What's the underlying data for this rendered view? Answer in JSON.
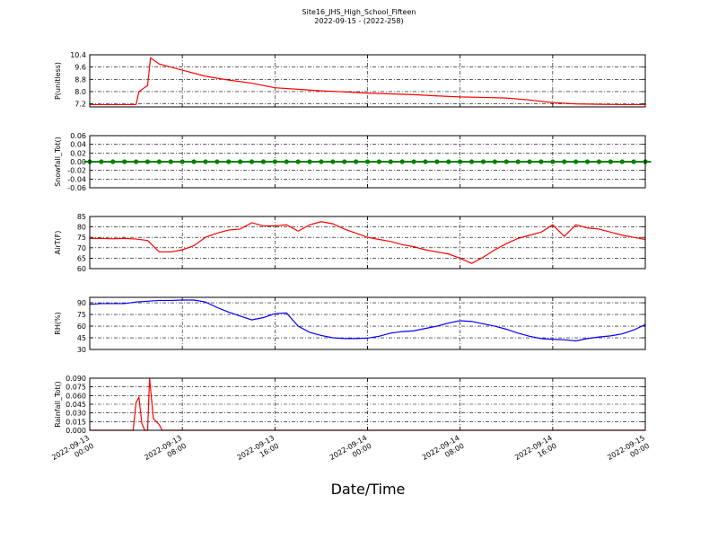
{
  "title": "Site16_JHS_High_School_Fifteen",
  "subtitle": "2022-09-15 - (2022-258)",
  "xlabel": "Date/Time",
  "xlim": [
    "2022-09-13 00:00",
    "2022-09-15 00:00"
  ],
  "xticks": [
    {
      "value": "2022-09-13 00:00",
      "label": [
        "2022-09-13",
        "00:00"
      ]
    },
    {
      "value": "2022-09-13 08:00",
      "label": [
        "2022-09-13",
        "08:00"
      ]
    },
    {
      "value": "2022-09-13 16:00",
      "label": [
        "2022-09-13",
        "16:00"
      ]
    },
    {
      "value": "2022-09-14 00:00",
      "label": [
        "2022-09-14",
        "00:00"
      ]
    },
    {
      "value": "2022-09-14 08:00",
      "label": [
        "2022-09-14",
        "08:00"
      ]
    },
    {
      "value": "2022-09-14 16:00",
      "label": [
        "2022-09-14",
        "16:00"
      ]
    },
    {
      "value": "2022-09-15 00:00",
      "label": [
        "2022-09-15",
        "00:00"
      ]
    }
  ],
  "chart_data": [
    {
      "type": "line",
      "ylabel": "P(unitless)",
      "color": "#ff0000",
      "grid": true,
      "ylim": [
        7.0,
        10.4
      ],
      "yticks": [
        7.2,
        {
          "value": 8,
          "label": "8.0"
        },
        8.8,
        9.6,
        10.4
      ],
      "x": [
        "2022-09-13 00:00",
        "2022-09-13 04:00",
        "2022-09-13 04:15",
        "2022-09-13 05:00",
        "2022-09-13 05:15",
        "2022-09-13 06:00",
        "2022-09-13 07:00",
        "2022-09-13 08:00",
        "2022-09-13 10:00",
        "2022-09-13 12:00",
        "2022-09-13 14:00",
        "2022-09-13 16:00",
        "2022-09-13 18:00",
        "2022-09-13 20:00",
        "2022-09-13 22:00",
        "2022-09-14 00:00",
        "2022-09-14 02:00",
        "2022-09-14 04:00",
        "2022-09-14 06:00",
        "2022-09-14 08:00",
        "2022-09-14 10:00",
        "2022-09-14 12:00",
        "2022-09-14 14:00",
        "2022-09-14 16:00",
        "2022-09-14 18:00",
        "2022-09-14 20:00",
        "2022-09-14 22:00",
        "2022-09-15 00:00"
      ],
      "values": [
        7.15,
        7.15,
        8.0,
        8.4,
        10.2,
        9.8,
        9.6,
        9.4,
        9.0,
        8.75,
        8.55,
        8.25,
        8.15,
        8.05,
        7.98,
        7.9,
        7.85,
        7.8,
        7.72,
        7.65,
        7.62,
        7.58,
        7.45,
        7.28,
        7.2,
        7.17,
        7.15,
        7.15
      ]
    },
    {
      "type": "scatter",
      "ylabel": "Snowfall_Tot()",
      "color": "#008000",
      "grid": true,
      "ylim": [
        -0.06,
        0.06
      ],
      "yticks": [
        -0.06,
        -0.04,
        -0.02,
        {
          "value": 0,
          "label": "0.00"
        },
        0.02,
        0.04,
        0.06
      ],
      "x": [
        "2022-09-13 00:00",
        "2022-09-13 01:00",
        "2022-09-13 02:00",
        "2022-09-13 03:00",
        "2022-09-13 04:00",
        "2022-09-13 05:00",
        "2022-09-13 06:00",
        "2022-09-13 07:00",
        "2022-09-13 08:00",
        "2022-09-13 09:00",
        "2022-09-13 10:00",
        "2022-09-13 11:00",
        "2022-09-13 12:00",
        "2022-09-13 13:00",
        "2022-09-13 14:00",
        "2022-09-13 15:00",
        "2022-09-13 16:00",
        "2022-09-13 17:00",
        "2022-09-13 18:00",
        "2022-09-13 19:00",
        "2022-09-13 20:00",
        "2022-09-13 21:00",
        "2022-09-13 22:00",
        "2022-09-13 23:00",
        "2022-09-14 00:00",
        "2022-09-14 01:00",
        "2022-09-14 02:00",
        "2022-09-14 03:00",
        "2022-09-14 04:00",
        "2022-09-14 05:00",
        "2022-09-14 06:00",
        "2022-09-14 07:00",
        "2022-09-14 08:00",
        "2022-09-14 09:00",
        "2022-09-14 10:00",
        "2022-09-14 11:00",
        "2022-09-14 12:00",
        "2022-09-14 13:00",
        "2022-09-14 14:00",
        "2022-09-14 15:00",
        "2022-09-14 16:00",
        "2022-09-14 17:00",
        "2022-09-14 18:00",
        "2022-09-14 19:00",
        "2022-09-14 20:00",
        "2022-09-14 21:00",
        "2022-09-14 22:00",
        "2022-09-14 23:00",
        "2022-09-15 00:00"
      ],
      "values": [
        0,
        0,
        0,
        0,
        0,
        0,
        0,
        0,
        0,
        0,
        0,
        0,
        0,
        0,
        0,
        0,
        0,
        0,
        0,
        0,
        0,
        0,
        0,
        0,
        0,
        0,
        0,
        0,
        0,
        0,
        0,
        0,
        0,
        0,
        0,
        0,
        0,
        0,
        0,
        0,
        0,
        0,
        0,
        0,
        0,
        0,
        0,
        0,
        0
      ]
    },
    {
      "type": "line",
      "ylabel": "AirT(F)",
      "color": "#ff0000",
      "grid": true,
      "ylim": [
        60,
        85
      ],
      "yticks": [
        60,
        65,
        70,
        75,
        80,
        85
      ],
      "x": [
        "2022-09-13 00:00",
        "2022-09-13 01:00",
        "2022-09-13 02:00",
        "2022-09-13 03:00",
        "2022-09-13 04:00",
        "2022-09-13 05:00",
        "2022-09-13 06:00",
        "2022-09-13 07:00",
        "2022-09-13 08:00",
        "2022-09-13 09:00",
        "2022-09-13 10:00",
        "2022-09-13 11:00",
        "2022-09-13 12:00",
        "2022-09-13 13:00",
        "2022-09-13 14:00",
        "2022-09-13 15:00",
        "2022-09-13 16:00",
        "2022-09-13 17:00",
        "2022-09-13 18:00",
        "2022-09-13 19:00",
        "2022-09-13 20:00",
        "2022-09-13 21:00",
        "2022-09-13 22:00",
        "2022-09-13 23:00",
        "2022-09-14 00:00",
        "2022-09-14 01:00",
        "2022-09-14 02:00",
        "2022-09-14 03:00",
        "2022-09-14 04:00",
        "2022-09-14 05:00",
        "2022-09-14 06:00",
        "2022-09-14 07:00",
        "2022-09-14 08:00",
        "2022-09-14 09:00",
        "2022-09-14 10:00",
        "2022-09-14 11:00",
        "2022-09-14 12:00",
        "2022-09-14 13:00",
        "2022-09-14 14:00",
        "2022-09-14 15:00",
        "2022-09-14 16:00",
        "2022-09-14 17:00",
        "2022-09-14 18:00",
        "2022-09-14 19:00",
        "2022-09-14 20:00",
        "2022-09-14 21:00",
        "2022-09-14 22:00",
        "2022-09-14 23:00",
        "2022-09-15 00:00"
      ],
      "values": [
        74.5,
        74.5,
        74.3,
        74.5,
        74.2,
        73.5,
        68,
        68,
        69,
        71,
        75,
        77,
        78.5,
        79,
        82,
        80.5,
        80.5,
        81,
        78,
        81,
        82.5,
        81.5,
        79,
        77,
        75,
        74,
        73,
        71.5,
        70.5,
        69,
        68,
        67,
        65,
        62.5,
        65.5,
        69,
        72,
        74.5,
        76,
        77.5,
        81,
        75.5,
        81,
        79.5,
        79,
        77.5,
        76,
        75,
        74
      ]
    },
    {
      "type": "line",
      "ylabel": "RH(%)",
      "color": "#0000ff",
      "grid": true,
      "ylim": [
        30,
        97
      ],
      "yticks": [
        30,
        45,
        60,
        75,
        90
      ],
      "x": [
        "2022-09-13 00:00",
        "2022-09-13 01:00",
        "2022-09-13 02:00",
        "2022-09-13 03:00",
        "2022-09-13 04:00",
        "2022-09-13 05:00",
        "2022-09-13 06:00",
        "2022-09-13 07:00",
        "2022-09-13 08:00",
        "2022-09-13 09:00",
        "2022-09-13 10:00",
        "2022-09-13 11:00",
        "2022-09-13 12:00",
        "2022-09-13 13:00",
        "2022-09-13 14:00",
        "2022-09-13 15:00",
        "2022-09-13 16:00",
        "2022-09-13 17:00",
        "2022-09-13 18:00",
        "2022-09-13 19:00",
        "2022-09-13 20:00",
        "2022-09-13 21:00",
        "2022-09-13 22:00",
        "2022-09-13 23:00",
        "2022-09-14 00:00",
        "2022-09-14 01:00",
        "2022-09-14 02:00",
        "2022-09-14 03:00",
        "2022-09-14 04:00",
        "2022-09-14 05:00",
        "2022-09-14 06:00",
        "2022-09-14 07:00",
        "2022-09-14 08:00",
        "2022-09-14 09:00",
        "2022-09-14 10:00",
        "2022-09-14 11:00",
        "2022-09-14 12:00",
        "2022-09-14 13:00",
        "2022-09-14 14:00",
        "2022-09-14 15:00",
        "2022-09-14 16:00",
        "2022-09-14 17:00",
        "2022-09-14 18:00",
        "2022-09-14 19:00",
        "2022-09-14 20:00",
        "2022-09-14 21:00",
        "2022-09-14 22:00",
        "2022-09-14 23:00",
        "2022-09-15 00:00"
      ],
      "values": [
        88,
        89,
        89,
        89,
        91,
        92,
        93,
        93,
        93.5,
        93.5,
        91,
        84,
        78,
        73,
        68,
        71,
        76,
        77,
        60,
        52,
        48,
        45,
        44,
        44,
        44.5,
        47,
        51,
        53,
        54,
        57,
        60,
        64,
        67,
        66,
        63,
        60,
        56,
        51,
        47,
        44,
        43,
        42.5,
        41,
        44,
        46,
        47.5,
        50,
        55,
        62
      ]
    },
    {
      "type": "line",
      "ylabel": "Rainfall_Tot()",
      "color": "#ff0000",
      "grid": true,
      "ylim": [
        0,
        0.09
      ],
      "yticks": [
        {
          "value": 0,
          "label": "0.000"
        },
        0.015,
        {
          "value": 0.03,
          "label": "0.030"
        },
        0.045,
        {
          "value": 0.06,
          "label": "0.060"
        },
        0.075,
        {
          "value": 0.09,
          "label": "0.090"
        }
      ],
      "x": [
        "2022-09-13 00:00",
        "2022-09-13 03:45",
        "2022-09-13 04:00",
        "2022-09-13 04:15",
        "2022-09-13 04:30",
        "2022-09-13 04:45",
        "2022-09-13 05:00",
        "2022-09-13 05:10",
        "2022-09-13 05:30",
        "2022-09-13 06:00",
        "2022-09-13 06:15",
        "2022-09-15 00:00"
      ],
      "values": [
        0,
        0,
        0.048,
        0.057,
        0.012,
        0,
        0,
        0.09,
        0.02,
        0.01,
        0,
        0
      ]
    }
  ]
}
